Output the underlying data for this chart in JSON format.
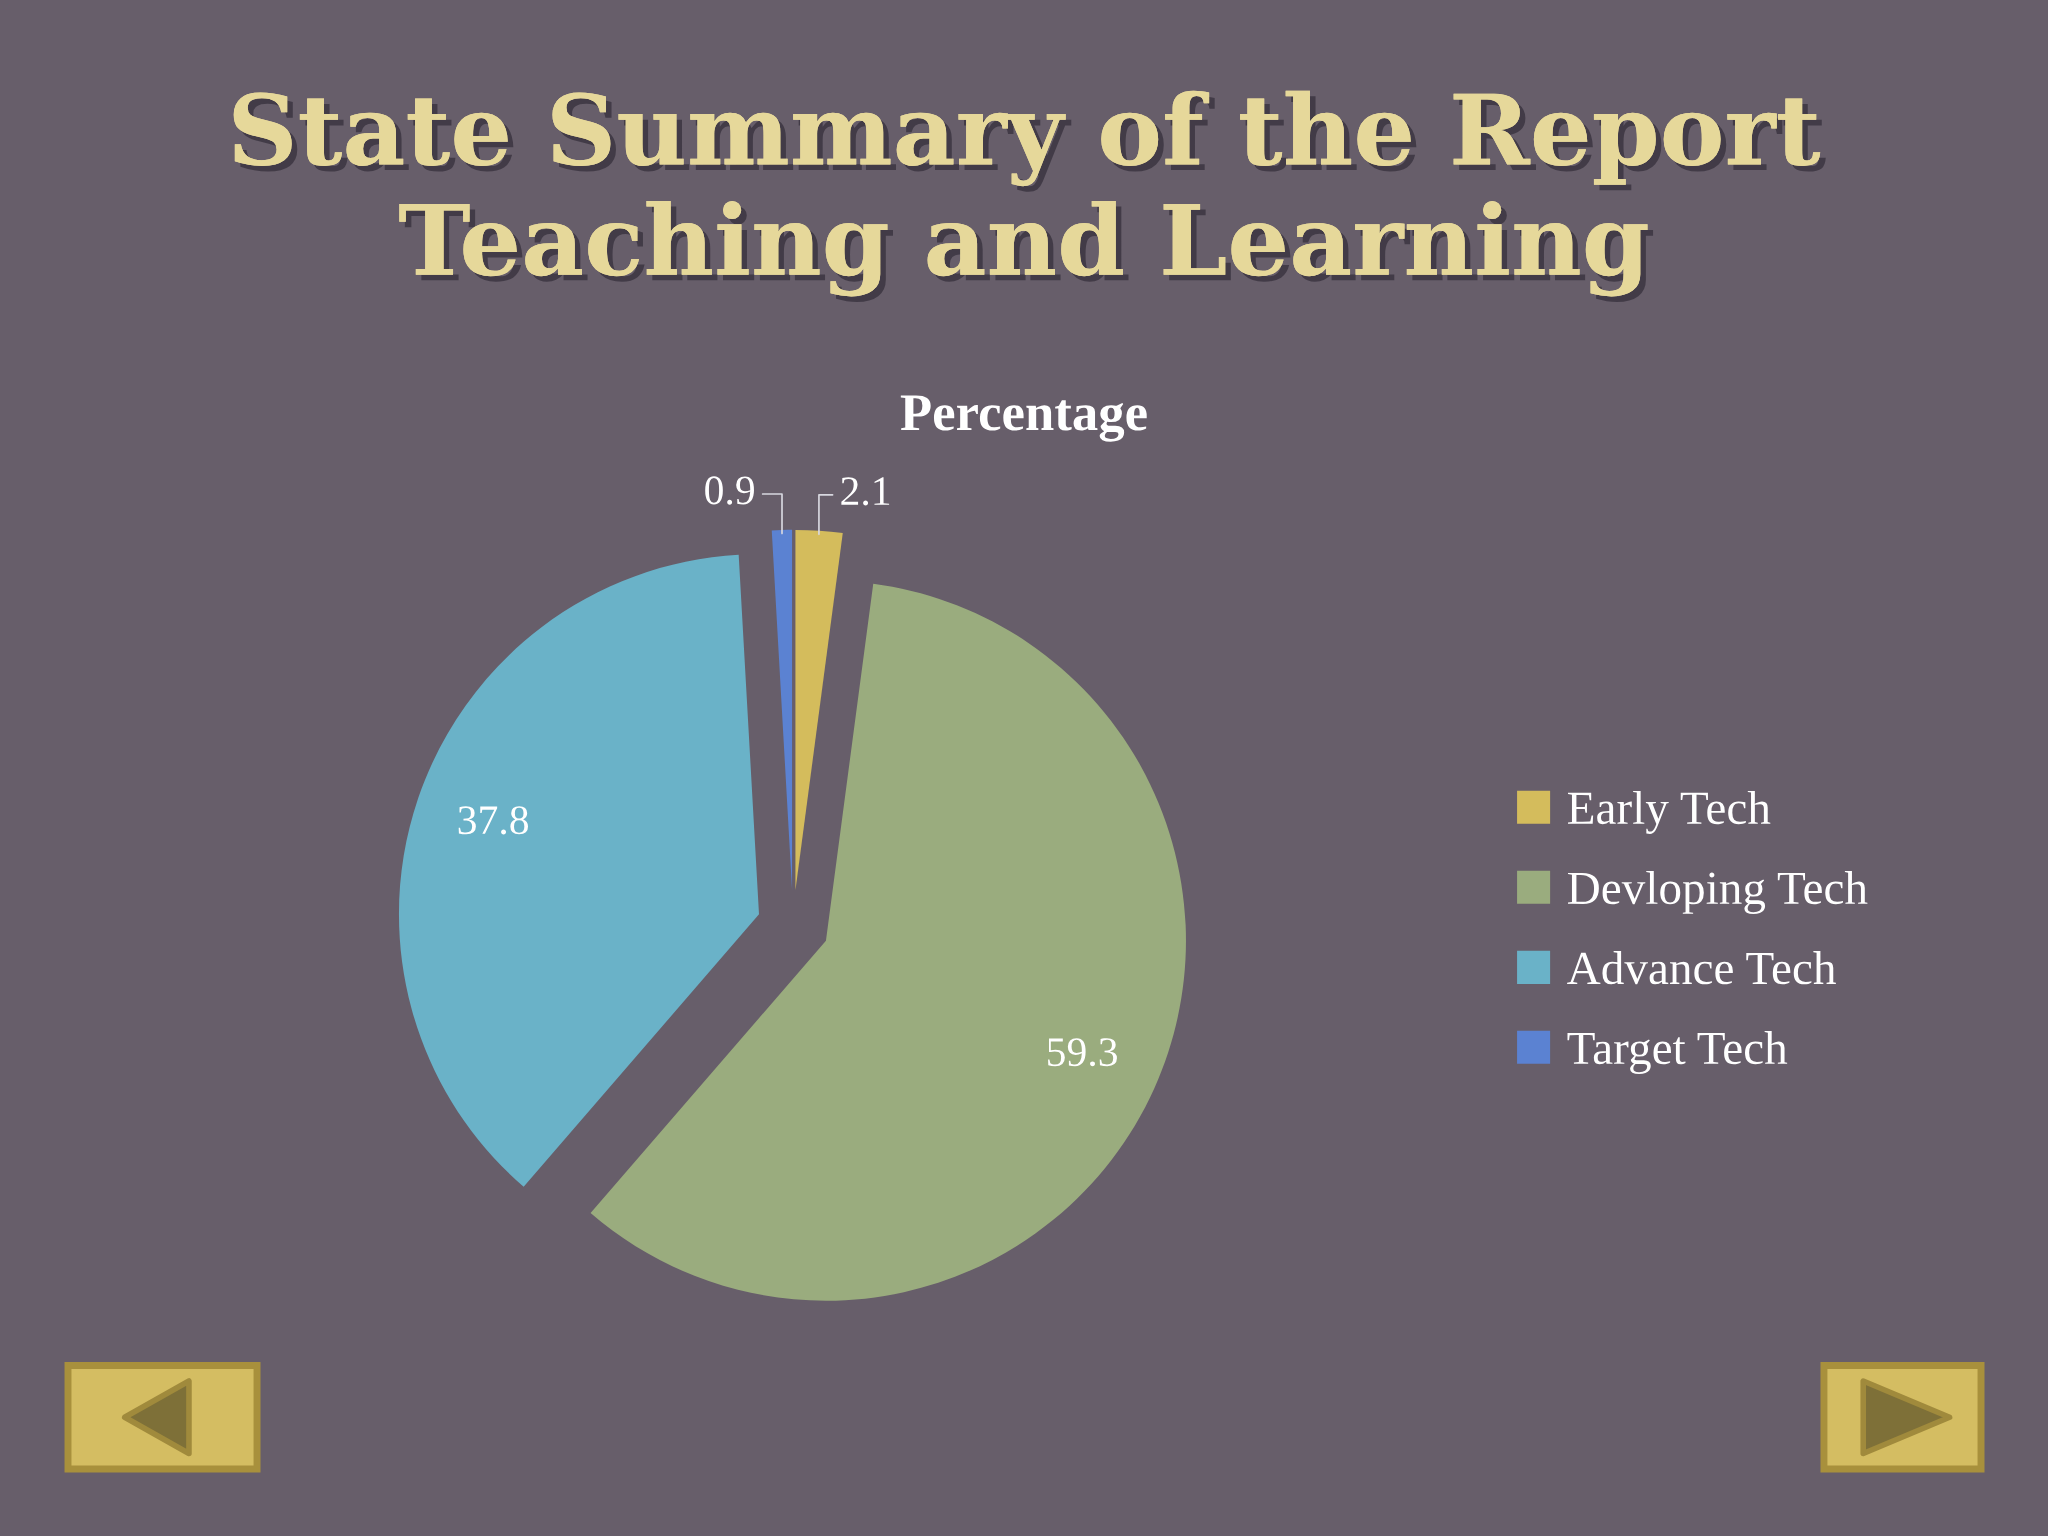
{
  "chart_data": {
    "type": "pie",
    "title": "State Summary of the Report\nTeaching and Learning",
    "subtitle": "Percentage",
    "categories": [
      "Early Tech",
      "Devloping Tech",
      "Advance Tech",
      "Target Tech"
    ],
    "values": [
      2.1,
      59.3,
      37.8,
      0.9
    ],
    "colors": [
      "#d4bc5c",
      "#9aac7e",
      "#6ab2c8",
      "#5b82d2"
    ],
    "data_labels": true,
    "legend": "right"
  }
}
